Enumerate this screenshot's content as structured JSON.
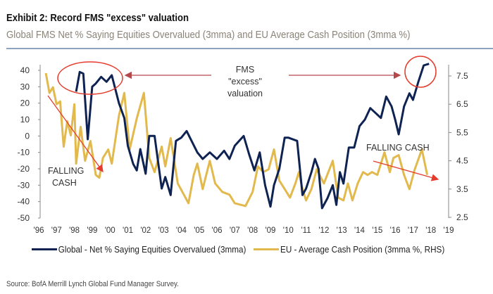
{
  "title": "Exhibit 2: Record FMS \"excess\" valuation",
  "subtitle": "Global FMS Net % Saying Equities Overvalued (3mma) and EU Average Cash Position (3mma %)",
  "source": "Source: BofA Merrill Lynch Global Fund Manager Survey.",
  "chart_data": {
    "type": "line",
    "title": "Exhibit 2: Record FMS \"excess\" valuation",
    "x_ticks": [
      "'96",
      "'97",
      "'98",
      "'99",
      "'00",
      "'01",
      "'02",
      "'03",
      "'04",
      "'05",
      "'06",
      "'07",
      "'08",
      "'09",
      "'10",
      "'11",
      "'12",
      "'13",
      "'14",
      "'15",
      "'16",
      "'17",
      "'18",
      "'19"
    ],
    "xlim": [
      1996,
      2019
    ],
    "y_left": {
      "ylim": [
        -50,
        40
      ],
      "ticks": [
        "-50",
        "-40",
        "-30",
        "-20",
        "-10",
        "0",
        "10",
        "20",
        "30",
        "40"
      ]
    },
    "y_right": {
      "ylim": [
        2.5,
        7.5
      ],
      "ticks": [
        "2.5",
        "3.5",
        "4.5",
        "5.5",
        "6.5",
        "7.5"
      ]
    },
    "grid": false,
    "legend_placement": "bottom",
    "series": [
      {
        "name": "Global - Net % Saying Equities Overvalued (3mma)",
        "axis": "left",
        "color": "#0f2352",
        "points": [
          [
            1998.1,
            27
          ],
          [
            1998.3,
            39
          ],
          [
            1998.5,
            38
          ],
          [
            1998.75,
            -2
          ],
          [
            1999.0,
            30
          ],
          [
            1999.2,
            32
          ],
          [
            1999.5,
            36
          ],
          [
            1999.8,
            33
          ],
          [
            2000.1,
            37
          ],
          [
            2000.5,
            20
          ],
          [
            2000.8,
            11
          ],
          [
            2001.0,
            -6
          ],
          [
            2001.3,
            -17
          ],
          [
            2001.5,
            -21
          ],
          [
            2001.7,
            -8
          ],
          [
            2002.0,
            -23
          ],
          [
            2002.2,
            0
          ],
          [
            2002.5,
            0
          ],
          [
            2002.9,
            -32
          ],
          [
            2003.1,
            -25
          ],
          [
            2003.4,
            -36
          ],
          [
            2003.7,
            -3
          ],
          [
            2004.0,
            -1
          ],
          [
            2004.3,
            3
          ],
          [
            2004.9,
            -10
          ],
          [
            2005.2,
            -14
          ],
          [
            2005.6,
            -10
          ],
          [
            2006.0,
            -14
          ],
          [
            2006.4,
            -9
          ],
          [
            2006.7,
            -14
          ],
          [
            2007.0,
            -6
          ],
          [
            2007.5,
            0
          ],
          [
            2007.8,
            -11
          ],
          [
            2008.1,
            -21
          ],
          [
            2008.4,
            -10
          ],
          [
            2008.7,
            -30
          ],
          [
            2009.0,
            -43
          ],
          [
            2009.2,
            -30
          ],
          [
            2009.5,
            -20
          ],
          [
            2009.8,
            -1
          ],
          [
            2010.0,
            -1
          ],
          [
            2010.5,
            -3
          ],
          [
            2010.8,
            -36
          ],
          [
            2011.0,
            -32
          ],
          [
            2011.3,
            -22
          ],
          [
            2011.5,
            -14
          ],
          [
            2011.7,
            -20
          ],
          [
            2011.9,
            -44
          ],
          [
            2012.2,
            -38
          ],
          [
            2012.5,
            -30
          ],
          [
            2012.7,
            -42
          ],
          [
            2012.9,
            -22
          ],
          [
            2013.1,
            -29
          ],
          [
            2013.4,
            -7
          ],
          [
            2013.7,
            -7
          ],
          [
            2014.0,
            6
          ],
          [
            2014.3,
            10
          ],
          [
            2014.6,
            17
          ],
          [
            2014.9,
            14
          ],
          [
            2015.2,
            11
          ],
          [
            2015.5,
            24
          ],
          [
            2015.8,
            18
          ],
          [
            2016.0,
            10
          ],
          [
            2016.2,
            1
          ],
          [
            2016.5,
            18
          ],
          [
            2016.8,
            26
          ],
          [
            2017.0,
            22
          ],
          [
            2017.3,
            33
          ],
          [
            2017.6,
            43
          ],
          [
            2017.9,
            44
          ]
        ]
      },
      {
        "name": "EU - Average Cash Position (3mma %, RHS)",
        "axis": "right",
        "color": "#e2b94c",
        "points": [
          [
            1996.4,
            7.6
          ],
          [
            1996.6,
            6.9
          ],
          [
            1996.8,
            7.1
          ],
          [
            1997.0,
            6.5
          ],
          [
            1997.2,
            6.6
          ],
          [
            1997.4,
            5.0
          ],
          [
            1997.6,
            5.9
          ],
          [
            1997.8,
            5.4
          ],
          [
            1998.0,
            6.5
          ],
          [
            1998.1,
            4.4
          ],
          [
            1998.35,
            5.7
          ],
          [
            1998.6,
            4.5
          ],
          [
            1998.9,
            5.2
          ],
          [
            1999.2,
            4.0
          ],
          [
            1999.4,
            3.9
          ],
          [
            1999.6,
            4.6
          ],
          [
            1999.9,
            4.9
          ],
          [
            2000.1,
            4.4
          ],
          [
            2000.5,
            6.1
          ],
          [
            2000.8,
            6.9
          ],
          [
            2001.1,
            4.9
          ],
          [
            2001.5,
            6.0
          ],
          [
            2001.9,
            6.9
          ],
          [
            2002.2,
            4.6
          ],
          [
            2002.5,
            4.1
          ],
          [
            2002.9,
            5.0
          ],
          [
            2003.1,
            4.3
          ],
          [
            2003.4,
            5.3
          ],
          [
            2003.8,
            3.7
          ],
          [
            2004.4,
            3.0
          ],
          [
            2004.7,
            4.0
          ],
          [
            2004.9,
            4.4
          ],
          [
            2005.2,
            3.5
          ],
          [
            2005.6,
            4.5
          ],
          [
            2005.9,
            3.7
          ],
          [
            2006.3,
            3.4
          ],
          [
            2006.7,
            3.3
          ],
          [
            2007.0,
            3.0
          ],
          [
            2007.6,
            2.9
          ],
          [
            2008.0,
            3.4
          ],
          [
            2008.3,
            4.3
          ],
          [
            2008.6,
            4.1
          ],
          [
            2008.9,
            4.2
          ],
          [
            2009.2,
            4.9
          ],
          [
            2009.5,
            3.8
          ],
          [
            2009.8,
            3.5
          ],
          [
            2010.1,
            3.2
          ],
          [
            2010.4,
            3.7
          ],
          [
            2010.6,
            4.1
          ],
          [
            2010.8,
            3.5
          ],
          [
            2011.0,
            3.1
          ],
          [
            2011.3,
            3.5
          ],
          [
            2011.6,
            4.2
          ],
          [
            2012.0,
            3.7
          ],
          [
            2012.5,
            4.5
          ],
          [
            2012.8,
            3.2
          ],
          [
            2013.1,
            3.1
          ],
          [
            2013.35,
            3.7
          ],
          [
            2013.6,
            3.1
          ],
          [
            2013.9,
            3.7
          ],
          [
            2014.2,
            4.1
          ],
          [
            2014.45,
            4.0
          ],
          [
            2014.7,
            4.1
          ],
          [
            2015.0,
            4.0
          ],
          [
            2015.4,
            4.8
          ],
          [
            2015.7,
            4.1
          ],
          [
            2015.9,
            4.6
          ],
          [
            2016.2,
            4.7
          ],
          [
            2016.5,
            4.0
          ],
          [
            2016.8,
            3.5
          ],
          [
            2017.1,
            4.2
          ],
          [
            2017.5,
            4.9
          ],
          [
            2017.8,
            4.0
          ]
        ]
      }
    ],
    "annotations": [
      {
        "text_lines": [
          "FMS",
          "\"excess\"",
          "valuation"
        ]
      },
      {
        "text_lines": [
          "FALLING",
          "CASH"
        ]
      },
      {
        "text_lines": [
          "FALLING  CASH"
        ]
      }
    ]
  }
}
